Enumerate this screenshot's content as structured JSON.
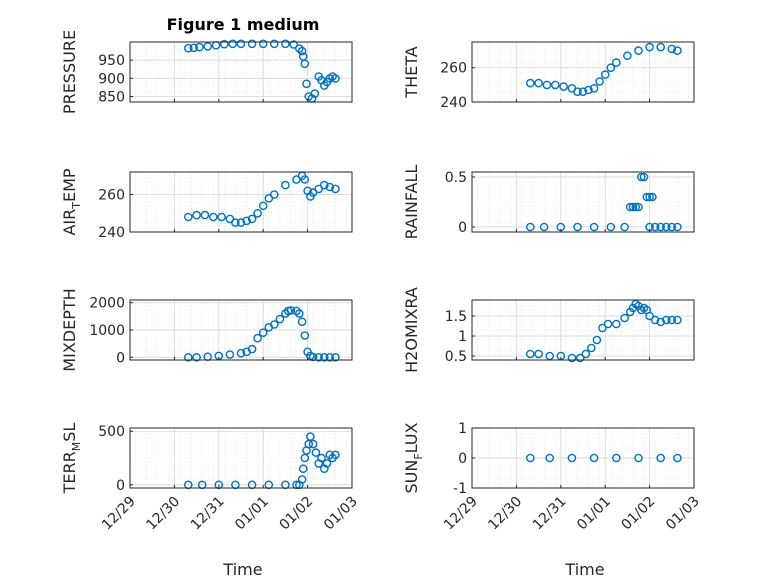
{
  "figure": {
    "title": "Figure 1 medium",
    "xlabel": "Time"
  },
  "colors": {
    "marker": "#0072BD",
    "axis": "#262626",
    "grid": "#DCDCDC"
  },
  "chart_data": [
    {
      "type": "scatter",
      "id": "pressure",
      "ylabel": "PRESSURE",
      "ylim": [
        835,
        1000
      ],
      "yticks": [
        850,
        900,
        950
      ],
      "xlim": [
        0,
        4
      ],
      "grid": true,
      "series": [
        {
          "points": [
            [
              1.05,
              983
            ],
            [
              1.15,
              984
            ],
            [
              1.25,
              986
            ],
            [
              1.4,
              988
            ],
            [
              1.55,
              991
            ],
            [
              1.7,
              994
            ],
            [
              1.85,
              995
            ],
            [
              2.0,
              995
            ],
            [
              2.2,
              995
            ],
            [
              2.4,
              995
            ],
            [
              2.6,
              995
            ],
            [
              2.8,
              995
            ],
            [
              2.95,
              993
            ],
            [
              3.05,
              982
            ],
            [
              3.1,
              975
            ],
            [
              3.12,
              960
            ],
            [
              3.15,
              940
            ],
            [
              3.18,
              885
            ],
            [
              3.22,
              850
            ],
            [
              3.28,
              845
            ],
            [
              3.33,
              858
            ],
            [
              3.4,
              905
            ],
            [
              3.45,
              895
            ],
            [
              3.5,
              880
            ],
            [
              3.55,
              890
            ],
            [
              3.6,
              900
            ],
            [
              3.65,
              905
            ],
            [
              3.7,
              900
            ]
          ]
        }
      ]
    },
    {
      "type": "scatter",
      "id": "theta",
      "ylabel": "THETA",
      "ylim": [
        240,
        275
      ],
      "yticks": [
        240,
        260
      ],
      "xlim": [
        0,
        4
      ],
      "grid": true,
      "series": [
        {
          "points": [
            [
              1.05,
              251
            ],
            [
              1.2,
              251
            ],
            [
              1.35,
              250
            ],
            [
              1.5,
              250
            ],
            [
              1.65,
              249
            ],
            [
              1.8,
              248
            ],
            [
              1.9,
              246
            ],
            [
              2.0,
              246
            ],
            [
              2.1,
              247
            ],
            [
              2.2,
              248
            ],
            [
              2.3,
              252
            ],
            [
              2.4,
              256
            ],
            [
              2.5,
              260
            ],
            [
              2.6,
              263
            ],
            [
              2.8,
              267
            ],
            [
              3.0,
              270
            ],
            [
              3.2,
              272
            ],
            [
              3.4,
              272
            ],
            [
              3.6,
              271
            ],
            [
              3.7,
              270
            ]
          ]
        }
      ]
    },
    {
      "type": "scatter",
      "id": "air_temp",
      "ylabel": "AIR",
      "ylabel_sub": "T",
      "ylabel_tail": "EMP",
      "ylim": [
        240,
        272
      ],
      "yticks": [
        240,
        260
      ],
      "xlim": [
        0,
        4
      ],
      "grid": true,
      "series": [
        {
          "points": [
            [
              1.05,
              248
            ],
            [
              1.2,
              249
            ],
            [
              1.35,
              249
            ],
            [
              1.5,
              248
            ],
            [
              1.65,
              248
            ],
            [
              1.8,
              247
            ],
            [
              1.9,
              245
            ],
            [
              2.0,
              245
            ],
            [
              2.1,
              246
            ],
            [
              2.2,
              247
            ],
            [
              2.3,
              250
            ],
            [
              2.4,
              254
            ],
            [
              2.5,
              258
            ],
            [
              2.6,
              260
            ],
            [
              2.8,
              265
            ],
            [
              3.0,
              268
            ],
            [
              3.1,
              270
            ],
            [
              3.15,
              268
            ],
            [
              3.2,
              262
            ],
            [
              3.25,
              259
            ],
            [
              3.3,
              261
            ],
            [
              3.4,
              263
            ],
            [
              3.5,
              265
            ],
            [
              3.6,
              264
            ],
            [
              3.7,
              263
            ]
          ]
        }
      ]
    },
    {
      "type": "scatter",
      "id": "rainfall",
      "ylabel": "RAINFALL",
      "ylim": [
        -0.05,
        0.55
      ],
      "yticks": [
        0,
        0.5
      ],
      "xlim": [
        0,
        4
      ],
      "grid": true,
      "series": [
        {
          "points": [
            [
              1.05,
              0
            ],
            [
              1.3,
              0
            ],
            [
              1.6,
              0
            ],
            [
              1.9,
              0
            ],
            [
              2.2,
              0
            ],
            [
              2.5,
              0
            ],
            [
              2.75,
              0
            ],
            [
              2.85,
              0.2
            ],
            [
              2.9,
              0.2
            ],
            [
              2.95,
              0.2
            ],
            [
              3.0,
              0.2
            ],
            [
              3.05,
              0.5
            ],
            [
              3.1,
              0.5
            ],
            [
              3.15,
              0.3
            ],
            [
              3.2,
              0.3
            ],
            [
              3.25,
              0.3
            ],
            [
              3.2,
              0
            ],
            [
              3.3,
              0
            ],
            [
              3.4,
              0
            ],
            [
              3.5,
              0
            ],
            [
              3.6,
              0
            ],
            [
              3.7,
              0
            ]
          ]
        }
      ]
    },
    {
      "type": "scatter",
      "id": "mixdepth",
      "ylabel": "MIXDEPTH",
      "ylim": [
        -100,
        2100
      ],
      "yticks": [
        0,
        1000,
        2000
      ],
      "xlim": [
        0,
        4
      ],
      "grid": true,
      "series": [
        {
          "points": [
            [
              1.05,
              0
            ],
            [
              1.2,
              0
            ],
            [
              1.4,
              20
            ],
            [
              1.6,
              50
            ],
            [
              1.8,
              100
            ],
            [
              2.0,
              150
            ],
            [
              2.1,
              200
            ],
            [
              2.2,
              300
            ],
            [
              2.3,
              700
            ],
            [
              2.4,
              900
            ],
            [
              2.5,
              1100
            ],
            [
              2.6,
              1200
            ],
            [
              2.7,
              1400
            ],
            [
              2.8,
              1600
            ],
            [
              2.85,
              1700
            ],
            [
              2.9,
              1720
            ],
            [
              3.0,
              1700
            ],
            [
              3.05,
              1600
            ],
            [
              3.1,
              1300
            ],
            [
              3.15,
              800
            ],
            [
              3.2,
              200
            ],
            [
              3.25,
              50
            ],
            [
              3.3,
              10
            ],
            [
              3.4,
              0
            ],
            [
              3.5,
              0
            ],
            [
              3.6,
              0
            ],
            [
              3.7,
              0
            ]
          ]
        }
      ]
    },
    {
      "type": "scatter",
      "id": "h2omixra",
      "ylabel": "H2OMIXRA",
      "ylim": [
        0.4,
        1.9
      ],
      "yticks": [
        0.5,
        1,
        1.5
      ],
      "xlim": [
        0,
        4
      ],
      "grid": true,
      "series": [
        {
          "points": [
            [
              1.05,
              0.55
            ],
            [
              1.2,
              0.55
            ],
            [
              1.4,
              0.5
            ],
            [
              1.6,
              0.5
            ],
            [
              1.8,
              0.45
            ],
            [
              1.95,
              0.45
            ],
            [
              2.05,
              0.55
            ],
            [
              2.15,
              0.7
            ],
            [
              2.25,
              0.9
            ],
            [
              2.35,
              1.2
            ],
            [
              2.45,
              1.3
            ],
            [
              2.6,
              1.3
            ],
            [
              2.75,
              1.45
            ],
            [
              2.85,
              1.6
            ],
            [
              2.9,
              1.7
            ],
            [
              2.95,
              1.8
            ],
            [
              3.0,
              1.75
            ],
            [
              3.05,
              1.65
            ],
            [
              3.1,
              1.7
            ],
            [
              3.15,
              1.65
            ],
            [
              3.2,
              1.5
            ],
            [
              3.3,
              1.4
            ],
            [
              3.4,
              1.35
            ],
            [
              3.5,
              1.4
            ],
            [
              3.6,
              1.4
            ],
            [
              3.7,
              1.4
            ]
          ]
        }
      ]
    },
    {
      "type": "scatter",
      "id": "terr_msl",
      "ylabel": "TERR",
      "ylabel_sub": "M",
      "ylabel_tail": "SL",
      "ylim": [
        -30,
        530
      ],
      "yticks": [
        0,
        500
      ],
      "xlim": [
        0,
        4
      ],
      "grid": true,
      "series": [
        {
          "points": [
            [
              1.05,
              0
            ],
            [
              1.3,
              0
            ],
            [
              1.6,
              0
            ],
            [
              1.9,
              0
            ],
            [
              2.2,
              0
            ],
            [
              2.5,
              0
            ],
            [
              2.8,
              0
            ],
            [
              3.0,
              0
            ],
            [
              3.05,
              0
            ],
            [
              3.1,
              50
            ],
            [
              3.12,
              150
            ],
            [
              3.15,
              250
            ],
            [
              3.18,
              320
            ],
            [
              3.22,
              380
            ],
            [
              3.25,
              450
            ],
            [
              3.3,
              380
            ],
            [
              3.35,
              300
            ],
            [
              3.4,
              200
            ],
            [
              3.45,
              250
            ],
            [
              3.5,
              150
            ],
            [
              3.55,
              200
            ],
            [
              3.6,
              280
            ],
            [
              3.65,
              250
            ],
            [
              3.7,
              280
            ]
          ]
        }
      ]
    },
    {
      "type": "scatter",
      "id": "sun_flux",
      "ylabel": "SUN",
      "ylabel_sub": "F",
      "ylabel_tail": "LUX",
      "ylim": [
        -1,
        1
      ],
      "yticks": [
        -1,
        0,
        1
      ],
      "xlim": [
        0,
        4
      ],
      "grid": true,
      "series": [
        {
          "points": [
            [
              1.05,
              0
            ],
            [
              1.4,
              0
            ],
            [
              1.8,
              0
            ],
            [
              2.2,
              0
            ],
            [
              2.6,
              0
            ],
            [
              3.0,
              0
            ],
            [
              3.4,
              0
            ],
            [
              3.7,
              0
            ]
          ]
        }
      ]
    }
  ],
  "xticks": [
    "12/29",
    "12/30",
    "12/31",
    "01/01",
    "01/02",
    "01/03"
  ]
}
